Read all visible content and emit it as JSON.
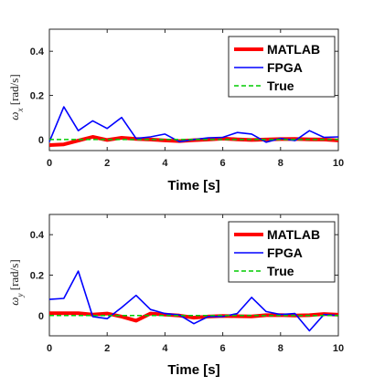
{
  "chart_data": [
    {
      "type": "line",
      "xlabel": "Time [s]",
      "ylabel": "ωx [rad/s]",
      "ylabel_main": "ω",
      "ylabel_sub": "x",
      "ylabel_unit": "[rad/s]",
      "xlim": [
        0,
        10
      ],
      "ylim": [
        -0.05,
        0.5
      ],
      "xticks": [
        0,
        2,
        4,
        6,
        8,
        10
      ],
      "yticks": [
        0,
        0.2,
        0.4
      ],
      "x": [
        0,
        0.5,
        1,
        1.5,
        2,
        2.5,
        3,
        3.5,
        4,
        4.5,
        5,
        5.5,
        6,
        6.5,
        7,
        7.5,
        8,
        8.5,
        9,
        9.5,
        10
      ],
      "legend_position": "top-right",
      "series": [
        {
          "name": "MATLAB",
          "color": "#ff0000",
          "style": "solid",
          "values": [
            -0.025,
            -0.022,
            -0.005,
            0.012,
            -0.002,
            0.008,
            0.003,
            0.0,
            -0.004,
            -0.007,
            -0.003,
            0.0,
            0.004,
            0.001,
            -0.002,
            0.0,
            0.002,
            0.003,
            0.001,
            0.0,
            -0.004
          ]
        },
        {
          "name": "FPGA",
          "color": "#0000ff",
          "style": "solid",
          "values": [
            -0.01,
            0.148,
            0.04,
            0.085,
            0.05,
            0.1,
            0.005,
            0.012,
            0.025,
            -0.01,
            0.0,
            0.008,
            0.01,
            0.032,
            0.025,
            -0.012,
            0.005,
            -0.005,
            0.04,
            0.01,
            0.012
          ]
        },
        {
          "name": "True",
          "color": "#00cc00",
          "style": "dashed",
          "values": [
            0,
            0,
            0,
            0,
            0,
            0,
            0,
            0,
            0,
            0,
            0,
            0,
            0,
            0,
            0,
            0,
            0,
            0,
            0,
            0,
            0
          ]
        }
      ]
    },
    {
      "type": "line",
      "xlabel": "Time [s]",
      "ylabel": "ωy [rad/s]",
      "ylabel_main": "ω",
      "ylabel_sub": "y",
      "ylabel_unit": "[rad/s]",
      "xlim": [
        0,
        10
      ],
      "ylim": [
        -0.1,
        0.5
      ],
      "xticks": [
        0,
        2,
        4,
        6,
        8,
        10
      ],
      "yticks": [
        0,
        0.2,
        0.4
      ],
      "x": [
        0,
        0.5,
        1,
        1.5,
        2,
        2.5,
        3,
        3.5,
        4,
        4.5,
        5,
        5.5,
        6,
        6.5,
        7,
        7.5,
        8,
        8.5,
        9,
        9.5,
        10
      ],
      "legend_position": "top-right",
      "series": [
        {
          "name": "MATLAB",
          "color": "#ff0000",
          "style": "solid",
          "values": [
            0.012,
            0.012,
            0.012,
            0.005,
            0.01,
            -0.005,
            -0.025,
            0.01,
            0.005,
            0.0,
            -0.01,
            -0.005,
            -0.002,
            -0.003,
            -0.004,
            0.002,
            0.003,
            0.0,
            0.002,
            0.008,
            0.004
          ]
        },
        {
          "name": "FPGA",
          "color": "#0000ff",
          "style": "solid",
          "values": [
            0.08,
            0.085,
            0.22,
            -0.005,
            -0.015,
            0.04,
            0.1,
            0.03,
            0.01,
            0.003,
            -0.04,
            -0.005,
            -0.005,
            0.01,
            0.09,
            0.02,
            0.005,
            0.01,
            -0.075,
            0.005,
            0.0
          ]
        },
        {
          "name": "True",
          "color": "#00cc00",
          "style": "dashed",
          "values": [
            0,
            0,
            0,
            0,
            0,
            0,
            0,
            0,
            0,
            0,
            0,
            0,
            0,
            0,
            0,
            0,
            0,
            0,
            0,
            0,
            0
          ]
        }
      ]
    }
  ]
}
